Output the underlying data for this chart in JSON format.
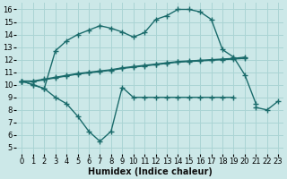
{
  "bg_color": "#cce8e8",
  "grid_color": "#aad4d4",
  "line_color": "#1a6b6b",
  "line_width": 1.0,
  "marker": "+",
  "markersize": 4,
  "markeredgewidth": 1.0,
  "xlabel": "Humidex (Indice chaleur)",
  "xlabel_fontsize": 7,
  "tick_fontsize": 6,
  "xlim": [
    -0.5,
    23.5
  ],
  "ylim": [
    4.5,
    16.5
  ],
  "yticks": [
    5,
    6,
    7,
    8,
    9,
    10,
    11,
    12,
    13,
    14,
    15,
    16
  ],
  "xticks": [
    0,
    1,
    2,
    3,
    4,
    5,
    6,
    7,
    8,
    9,
    10,
    11,
    12,
    13,
    14,
    15,
    16,
    17,
    18,
    19,
    20,
    21,
    22,
    23
  ],
  "curve_top_x": [
    0,
    1,
    2,
    3,
    4,
    5,
    6,
    7,
    8,
    9,
    10,
    11,
    12,
    13,
    14,
    15,
    16,
    17,
    18,
    19,
    20,
    21
  ],
  "curve_top_y": [
    10.3,
    10.0,
    9.7,
    12.7,
    13.5,
    14.0,
    14.35,
    14.7,
    14.5,
    14.2,
    13.8,
    14.15,
    15.2,
    15.5,
    16.0,
    16.0,
    15.8,
    15.2,
    12.8,
    12.2,
    10.8,
    8.5
  ],
  "curve_line1_x": [
    0,
    1,
    2,
    3,
    4,
    5,
    6,
    7,
    8,
    9,
    10,
    11,
    12,
    13,
    14,
    15,
    16,
    17,
    18,
    19,
    20
  ],
  "curve_line1_y": [
    10.3,
    10.25,
    10.4,
    10.55,
    10.7,
    10.85,
    10.95,
    11.05,
    11.15,
    11.3,
    11.4,
    11.5,
    11.6,
    11.7,
    11.8,
    11.85,
    11.9,
    11.95,
    12.0,
    12.05,
    12.1
  ],
  "curve_line2_x": [
    0,
    1,
    2,
    3,
    4,
    5,
    6,
    7,
    8,
    9,
    10,
    11,
    12,
    13,
    14,
    15,
    16,
    17,
    18,
    19,
    20
  ],
  "curve_line2_y": [
    10.3,
    10.3,
    10.45,
    10.6,
    10.75,
    10.9,
    11.0,
    11.1,
    11.2,
    11.35,
    11.45,
    11.55,
    11.65,
    11.75,
    11.85,
    11.9,
    11.95,
    12.0,
    12.05,
    12.1,
    12.2
  ],
  "curve_dip_x": [
    0,
    1,
    2,
    3,
    4,
    5,
    6,
    7,
    8,
    9,
    10,
    11,
    12,
    13,
    14,
    15,
    16,
    17,
    18,
    19,
    20,
    21,
    22,
    23
  ],
  "curve_dip_y": [
    10.3,
    10.0,
    9.7,
    9.0,
    8.5,
    7.5,
    6.3,
    5.5,
    6.3,
    9.8,
    9.0,
    9.0,
    9.0,
    9.0,
    9.0,
    9.0,
    9.0,
    9.0,
    9.0,
    9.0,
    null,
    8.2,
    8.0,
    8.7
  ]
}
